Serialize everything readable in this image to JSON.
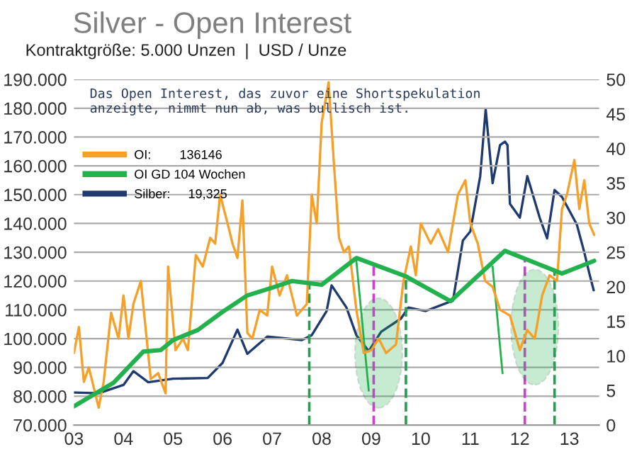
{
  "chart_data": {
    "type": "line",
    "title": "Silver - Open Interest",
    "subtitle": "Kontraktgröße: 5.000 Unzen  |  USD / Unze",
    "annotations": [
      "Das Open Interest, das zuvor eine Shortspekulation\nanzeigte, nimmt nun ab, was bullisch ist."
    ],
    "series": [
      {
        "name": "OI:        136146",
        "color": "#f5a02a",
        "x": [
          2003.0,
          2003.1,
          2003.2,
          2003.3,
          2003.5,
          2003.6,
          2003.75,
          2003.9,
          2004.0,
          2004.1,
          2004.2,
          2004.35,
          2004.55,
          2004.7,
          2004.85,
          2004.9,
          2005.05,
          2005.2,
          2005.3,
          2005.46,
          2005.6,
          2005.75,
          2005.85,
          2005.95,
          2006.1,
          2006.2,
          2006.3,
          2006.4,
          2006.5,
          2006.6,
          2006.75,
          2006.9,
          2007.0,
          2007.15,
          2007.3,
          2007.5,
          2007.7,
          2007.8,
          2007.9,
          2008.0,
          2008.14,
          2008.25,
          2008.35,
          2008.45,
          2008.55,
          2008.7,
          2008.85,
          2009.0,
          2009.15,
          2009.3,
          2009.5,
          2009.65,
          2009.8,
          2009.9,
          2010.0,
          2010.2,
          2010.35,
          2010.55,
          2010.75,
          2010.9,
          2011.0,
          2011.15,
          2011.3,
          2011.45,
          2011.6,
          2011.8,
          2012.0,
          2012.15,
          2012.3,
          2012.45,
          2012.6,
          2012.75,
          2012.85,
          2012.95,
          2013.1,
          2013.2,
          2013.3,
          2013.4,
          2013.5
        ],
        "values": [
          95000,
          104000,
          85000,
          90000,
          76000,
          85000,
          109000,
          100000,
          115000,
          100000,
          112000,
          120000,
          86000,
          88000,
          81000,
          125000,
          96000,
          100000,
          96000,
          129000,
          125000,
          135000,
          133000,
          150000,
          140000,
          133000,
          128000,
          148000,
          102000,
          100000,
          110000,
          108000,
          125000,
          115000,
          122000,
          108000,
          112000,
          150000,
          140000,
          175000,
          189000,
          160000,
          135000,
          130000,
          132000,
          110000,
          95000,
          96000,
          100000,
          95000,
          98000,
          120000,
          132000,
          122000,
          140000,
          133000,
          138000,
          130000,
          150000,
          155000,
          140000,
          133000,
          120000,
          118000,
          110000,
          108000,
          96000,
          103000,
          100000,
          115000,
          122000,
          120000,
          145000,
          150000,
          162000,
          145000,
          155000,
          140000,
          136000
        ]
      },
      {
        "name": "OI GD 104 Wochen",
        "color": "#22b14c",
        "x": [
          2003.0,
          2003.8,
          2004.4,
          2004.75,
          2005.0,
          2005.5,
          2006.0,
          2006.5,
          2007.0,
          2007.4,
          2008.0,
          2008.7,
          2009.7,
          2010.6,
          2011.7,
          2012.85,
          2013.5
        ],
        "values": [
          76500,
          84700,
          95500,
          96000,
          99500,
          103000,
          109300,
          115000,
          117700,
          120000,
          118700,
          128000,
          121600,
          113000,
          130500,
          122600,
          127000
        ]
      },
      {
        "name": "Silber:     19,325",
        "color": "#1f3a6e",
        "axis": "y2",
        "x": [
          2003.0,
          2003.5,
          2004.0,
          2004.2,
          2004.5,
          2005.0,
          2005.7,
          2006.0,
          2006.3,
          2006.5,
          2006.9,
          2007.6,
          2007.8,
          2008.1,
          2008.2,
          2008.5,
          2008.7,
          2008.95,
          2009.2,
          2009.6,
          2009.75,
          2010.1,
          2010.65,
          2010.85,
          2011.0,
          2011.2,
          2011.31,
          2011.45,
          2011.6,
          2011.7,
          2011.75,
          2011.8,
          2012.0,
          2012.15,
          2012.4,
          2012.55,
          2012.7,
          2012.85,
          2013.0,
          2013.15,
          2013.3,
          2013.4,
          2013.49
        ],
        "values": [
          4.7,
          4.6,
          5.8,
          7.8,
          6.2,
          6.7,
          6.8,
          9.0,
          13.8,
          10.3,
          12.8,
          12.3,
          13.0,
          16.5,
          20.2,
          17.0,
          13.0,
          10.7,
          13.5,
          15.4,
          17.0,
          16.5,
          18.0,
          26.7,
          28.0,
          36.0,
          45.7,
          35.0,
          40.5,
          41.0,
          40.5,
          32.0,
          30.0,
          36.0,
          30.0,
          27.0,
          34.0,
          33.0,
          31.0,
          29.0,
          25.0,
          22.0,
          19.5
        ]
      }
    ],
    "xlim": [
      2003.0,
      2013.6
    ],
    "xticks": [
      {
        "value": 2003,
        "label": "03"
      },
      {
        "value": 2004,
        "label": "04"
      },
      {
        "value": 2005,
        "label": "05"
      },
      {
        "value": 2006,
        "label": "06"
      },
      {
        "value": 2007,
        "label": "07"
      },
      {
        "value": 2008,
        "label": "08"
      },
      {
        "value": 2009,
        "label": "09"
      },
      {
        "value": 2010,
        "label": "10"
      },
      {
        "value": 2011,
        "label": "11"
      },
      {
        "value": 2012,
        "label": "12"
      },
      {
        "value": 2013,
        "label": "13"
      }
    ],
    "ylim": [
      70000,
      190000
    ],
    "yticks": [
      {
        "value": 70000,
        "label": "70.000"
      },
      {
        "value": 80000,
        "label": "80.000"
      },
      {
        "value": 90000,
        "label": "90.000"
      },
      {
        "value": 100000,
        "label": "100.000"
      },
      {
        "value": 110000,
        "label": "110.000"
      },
      {
        "value": 120000,
        "label": "120.000"
      },
      {
        "value": 130000,
        "label": "130.000"
      },
      {
        "value": 140000,
        "label": "140.000"
      },
      {
        "value": 150000,
        "label": "150.000"
      },
      {
        "value": 160000,
        "label": "160.000"
      },
      {
        "value": 170000,
        "label": "170.000"
      },
      {
        "value": 180000,
        "label": "180.000"
      },
      {
        "value": 190000,
        "label": "190.000"
      }
    ],
    "y2lim": [
      0,
      50
    ],
    "y2ticks": [
      0,
      5,
      10,
      15,
      20,
      25,
      30,
      35,
      40,
      45,
      50
    ],
    "ref_lines": [
      {
        "axis": "x",
        "value": 2007.75,
        "color": "#22a050",
        "line_style": "dashed"
      },
      {
        "axis": "x",
        "value": 2009.7,
        "color": "#22a050",
        "line_style": "dashed"
      },
      {
        "axis": "x",
        "value": 2012.7,
        "color": "#22a050",
        "line_style": "dashed"
      },
      {
        "axis": "x",
        "value": 2009.05,
        "color": "#d040d0",
        "line_style": "dashed"
      },
      {
        "axis": "x",
        "value": 2012.1,
        "color": "#d040d0",
        "line_style": "dashed"
      }
    ],
    "grid": "y",
    "legend": "top left",
    "line_style": "solid",
    "marker": "none"
  }
}
